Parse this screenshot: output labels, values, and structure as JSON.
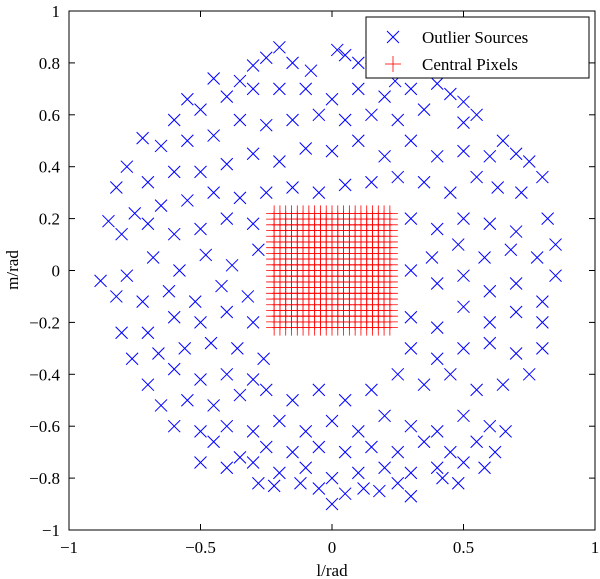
{
  "chart_data": {
    "type": "scatter",
    "title": "",
    "xlabel": "l/rad",
    "ylabel": "m/rad",
    "xlim": [
      -1,
      1
    ],
    "ylim": [
      -1,
      1
    ],
    "xticks": [
      -1,
      -0.5,
      0,
      0.5,
      1
    ],
    "yticks": [
      -1,
      -0.8,
      -0.6,
      -0.4,
      -0.2,
      0,
      0.2,
      0.4,
      0.6,
      0.8,
      1
    ],
    "xtick_labels": [
      "−1",
      "−0.5",
      "0",
      "0.5",
      "1"
    ],
    "ytick_labels": [
      "−1",
      "−0.8",
      "−0.6",
      "−0.4",
      "−0.2",
      "0",
      "0.2",
      "0.4",
      "0.6",
      "0.8",
      "1"
    ],
    "grid": false,
    "legend_position": "top-right",
    "series": [
      {
        "name": "Outlier Sources",
        "marker": "x",
        "color": "#0000ff",
        "points": [
          [
            -0.2,
            0.86
          ],
          [
            -0.25,
            0.82
          ],
          [
            -0.15,
            0.8
          ],
          [
            -0.08,
            0.77
          ],
          [
            0.02,
            0.85
          ],
          [
            0.05,
            0.83
          ],
          [
            0.1,
            0.8
          ],
          [
            0.15,
            0.82
          ],
          [
            0.2,
            0.78
          ],
          [
            0.24,
            0.73
          ],
          [
            -0.3,
            0.79
          ],
          [
            -0.35,
            0.73
          ],
          [
            -0.45,
            0.74
          ],
          [
            -0.55,
            0.66
          ],
          [
            -0.6,
            0.58
          ],
          [
            -0.5,
            0.62
          ],
          [
            -0.4,
            0.67
          ],
          [
            -0.3,
            0.7
          ],
          [
            -0.2,
            0.7
          ],
          [
            -0.1,
            0.7
          ],
          [
            0.0,
            0.66
          ],
          [
            0.1,
            0.7
          ],
          [
            0.2,
            0.67
          ],
          [
            0.3,
            0.7
          ],
          [
            0.4,
            0.72
          ],
          [
            0.5,
            0.65
          ],
          [
            0.45,
            0.68
          ],
          [
            0.55,
            0.6
          ],
          [
            0.5,
            0.57
          ],
          [
            0.35,
            0.62
          ],
          [
            0.25,
            0.58
          ],
          [
            0.15,
            0.6
          ],
          [
            0.05,
            0.58
          ],
          [
            -0.05,
            0.6
          ],
          [
            -0.15,
            0.58
          ],
          [
            -0.25,
            0.56
          ],
          [
            -0.35,
            0.58
          ],
          [
            -0.45,
            0.52
          ],
          [
            -0.55,
            0.5
          ],
          [
            -0.65,
            0.48
          ],
          [
            -0.72,
            0.51
          ],
          [
            -0.78,
            0.4
          ],
          [
            -0.82,
            0.32
          ],
          [
            -0.7,
            0.34
          ],
          [
            -0.6,
            0.38
          ],
          [
            -0.5,
            0.38
          ],
          [
            -0.4,
            0.41
          ],
          [
            -0.3,
            0.45
          ],
          [
            -0.2,
            0.42
          ],
          [
            -0.1,
            0.47
          ],
          [
            0.0,
            0.46
          ],
          [
            0.1,
            0.5
          ],
          [
            0.2,
            0.44
          ],
          [
            0.3,
            0.5
          ],
          [
            0.4,
            0.44
          ],
          [
            0.5,
            0.46
          ],
          [
            0.6,
            0.44
          ],
          [
            0.65,
            0.5
          ],
          [
            0.7,
            0.45
          ],
          [
            0.75,
            0.42
          ],
          [
            0.8,
            0.36
          ],
          [
            0.72,
            0.3
          ],
          [
            0.63,
            0.32
          ],
          [
            0.55,
            0.36
          ],
          [
            0.45,
            0.3
          ],
          [
            0.35,
            0.34
          ],
          [
            0.25,
            0.36
          ],
          [
            0.15,
            0.34
          ],
          [
            0.05,
            0.33
          ],
          [
            -0.05,
            0.3
          ],
          [
            -0.15,
            0.32
          ],
          [
            -0.25,
            0.3
          ],
          [
            -0.35,
            0.28
          ],
          [
            -0.45,
            0.3
          ],
          [
            -0.55,
            0.27
          ],
          [
            -0.65,
            0.25
          ],
          [
            -0.75,
            0.22
          ],
          [
            -0.85,
            0.19
          ],
          [
            -0.8,
            0.14
          ],
          [
            -0.7,
            0.18
          ],
          [
            -0.6,
            0.14
          ],
          [
            -0.5,
            0.16
          ],
          [
            -0.4,
            0.2
          ],
          [
            -0.3,
            0.18
          ],
          [
            0.3,
            0.2
          ],
          [
            0.4,
            0.16
          ],
          [
            0.5,
            0.2
          ],
          [
            0.6,
            0.18
          ],
          [
            0.7,
            0.15
          ],
          [
            0.82,
            0.2
          ],
          [
            0.85,
            0.1
          ],
          [
            0.78,
            0.05
          ],
          [
            0.68,
            0.08
          ],
          [
            0.58,
            0.05
          ],
          [
            0.48,
            0.1
          ],
          [
            0.38,
            0.05
          ],
          [
            0.3,
            0.0
          ],
          [
            0.4,
            -0.05
          ],
          [
            0.5,
            -0.02
          ],
          [
            0.6,
            -0.08
          ],
          [
            0.7,
            -0.05
          ],
          [
            0.8,
            -0.12
          ],
          [
            0.85,
            -0.02
          ],
          [
            -0.28,
            0.08
          ],
          [
            -0.38,
            0.02
          ],
          [
            -0.48,
            0.06
          ],
          [
            -0.58,
            0.0
          ],
          [
            -0.68,
            0.05
          ],
          [
            -0.78,
            -0.02
          ],
          [
            -0.88,
            -0.04
          ],
          [
            -0.82,
            -0.1
          ],
          [
            -0.72,
            -0.12
          ],
          [
            -0.62,
            -0.08
          ],
          [
            -0.52,
            -0.12
          ],
          [
            -0.42,
            -0.06
          ],
          [
            -0.32,
            -0.1
          ],
          [
            -0.3,
            -0.2
          ],
          [
            -0.4,
            -0.16
          ],
          [
            -0.5,
            -0.2
          ],
          [
            -0.6,
            -0.18
          ],
          [
            -0.7,
            -0.24
          ],
          [
            -0.8,
            -0.24
          ],
          [
            -0.76,
            -0.34
          ],
          [
            -0.66,
            -0.32
          ],
          [
            -0.56,
            -0.3
          ],
          [
            -0.46,
            -0.28
          ],
          [
            -0.36,
            -0.3
          ],
          [
            -0.26,
            -0.34
          ],
          [
            -0.3,
            -0.42
          ],
          [
            -0.4,
            -0.4
          ],
          [
            -0.5,
            -0.42
          ],
          [
            -0.6,
            -0.38
          ],
          [
            -0.7,
            -0.44
          ],
          [
            -0.65,
            -0.52
          ],
          [
            -0.55,
            -0.5
          ],
          [
            -0.45,
            -0.52
          ],
          [
            -0.35,
            -0.48
          ],
          [
            -0.25,
            -0.46
          ],
          [
            -0.15,
            -0.5
          ],
          [
            -0.05,
            -0.46
          ],
          [
            0.05,
            -0.5
          ],
          [
            0.15,
            -0.46
          ],
          [
            0.25,
            -0.4
          ],
          [
            0.35,
            -0.44
          ],
          [
            0.45,
            -0.4
          ],
          [
            0.55,
            -0.46
          ],
          [
            0.65,
            -0.44
          ],
          [
            0.75,
            -0.4
          ],
          [
            0.8,
            -0.3
          ],
          [
            0.7,
            -0.32
          ],
          [
            0.6,
            -0.28
          ],
          [
            0.5,
            -0.3
          ],
          [
            0.4,
            -0.34
          ],
          [
            0.3,
            -0.3
          ],
          [
            0.3,
            -0.18
          ],
          [
            0.4,
            -0.22
          ],
          [
            0.5,
            -0.14
          ],
          [
            0.6,
            -0.2
          ],
          [
            0.7,
            -0.16
          ],
          [
            0.8,
            -0.2
          ],
          [
            -0.6,
            -0.6
          ],
          [
            -0.5,
            -0.62
          ],
          [
            -0.4,
            -0.6
          ],
          [
            -0.3,
            -0.62
          ],
          [
            -0.2,
            -0.58
          ],
          [
            -0.1,
            -0.62
          ],
          [
            0.0,
            -0.58
          ],
          [
            0.1,
            -0.62
          ],
          [
            0.2,
            -0.56
          ],
          [
            0.3,
            -0.6
          ],
          [
            0.4,
            -0.62
          ],
          [
            0.5,
            -0.56
          ],
          [
            0.6,
            -0.6
          ],
          [
            0.55,
            -0.66
          ],
          [
            0.45,
            -0.7
          ],
          [
            0.35,
            -0.66
          ],
          [
            0.25,
            -0.7
          ],
          [
            0.15,
            -0.68
          ],
          [
            0.05,
            -0.7
          ],
          [
            -0.05,
            -0.68
          ],
          [
            -0.15,
            -0.7
          ],
          [
            -0.25,
            -0.68
          ],
          [
            -0.35,
            -0.72
          ],
          [
            -0.45,
            -0.66
          ],
          [
            -0.5,
            -0.74
          ],
          [
            -0.4,
            -0.76
          ],
          [
            -0.3,
            -0.74
          ],
          [
            -0.2,
            -0.78
          ],
          [
            -0.1,
            -0.76
          ],
          [
            0.0,
            -0.8
          ],
          [
            0.1,
            -0.78
          ],
          [
            0.2,
            -0.76
          ],
          [
            0.3,
            -0.78
          ],
          [
            0.4,
            -0.76
          ],
          [
            0.5,
            -0.74
          ],
          [
            -0.28,
            -0.82
          ],
          [
            -0.22,
            -0.83
          ],
          [
            -0.12,
            -0.82
          ],
          [
            -0.05,
            -0.84
          ],
          [
            0.0,
            -0.9
          ],
          [
            0.05,
            -0.86
          ],
          [
            0.12,
            -0.84
          ],
          [
            0.18,
            -0.85
          ],
          [
            0.25,
            -0.82
          ],
          [
            0.3,
            -0.87
          ],
          [
            0.42,
            -0.8
          ],
          [
            0.48,
            -0.82
          ],
          [
            0.58,
            -0.76
          ],
          [
            0.62,
            -0.7
          ],
          [
            0.66,
            -0.62
          ]
        ]
      },
      {
        "name": "Central Pixels",
        "marker": "+",
        "color": "#ff0000",
        "grid_min": -0.22,
        "grid_max": 0.22,
        "grid_count": 21
      }
    ]
  }
}
